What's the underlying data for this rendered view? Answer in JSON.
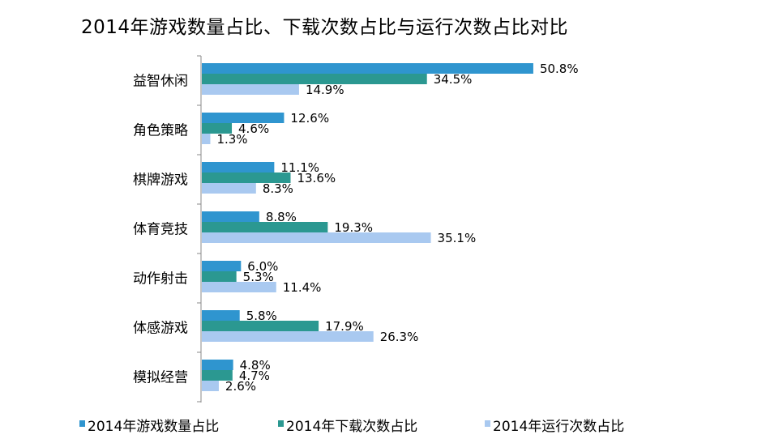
{
  "chart_data": {
    "type": "bar",
    "orientation": "horizontal",
    "title": "2014年游戏数量占比、下载次数占比与运行次数占比对比",
    "categories": [
      "益智休闲",
      "角色策略",
      "棋牌游戏",
      "体育竞技",
      "动作射击",
      "体感游戏",
      "模拟经营"
    ],
    "series": [
      {
        "name": "2014年游戏数量占比",
        "color": "#2f95cf",
        "values": [
          50.8,
          12.6,
          11.1,
          8.8,
          6.0,
          5.8,
          4.8
        ]
      },
      {
        "name": "2014年下载次数占比",
        "color": "#2b9891",
        "values": [
          34.5,
          4.6,
          13.6,
          19.3,
          5.3,
          17.9,
          4.7
        ]
      },
      {
        "name": "2014年运行次数占比",
        "color": "#a9c9f0",
        "values": [
          14.9,
          1.3,
          8.3,
          35.1,
          11.4,
          26.3,
          2.6
        ]
      }
    ],
    "value_suffix": "%",
    "xlim": [
      0,
      100
    ],
    "grid": false,
    "legend_position": "bottom"
  }
}
